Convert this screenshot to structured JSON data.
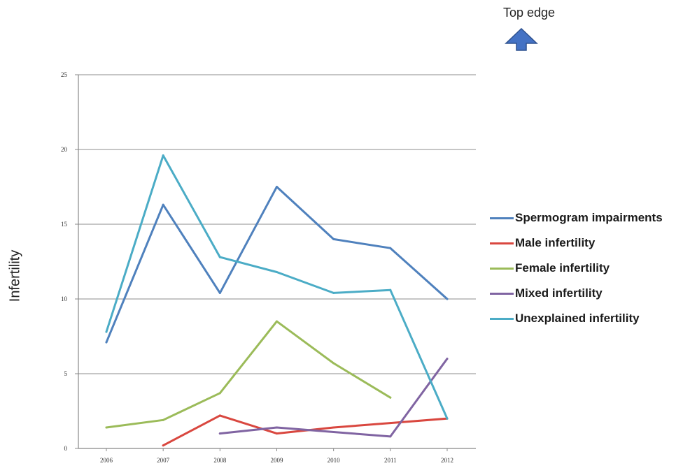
{
  "annotation": {
    "top_edge_label": "Top edge",
    "arrow_icon": "up-arrow-icon",
    "arrow_color": "#4472C4"
  },
  "chart_data": {
    "type": "line",
    "title": "",
    "xlabel": "",
    "ylabel": "Infertility",
    "categories": [
      "2006",
      "2007",
      "2008",
      "2009",
      "2010",
      "2011",
      "2012"
    ],
    "ylim": [
      0,
      25
    ],
    "yticks": [
      0,
      5,
      10,
      15,
      20,
      25
    ],
    "grid": true,
    "legend_position": "right",
    "series": [
      {
        "name": "Spermogram impairments",
        "color": "#4F81BD",
        "values": [
          7.1,
          16.3,
          10.4,
          17.5,
          14.0,
          13.4,
          10.0
        ]
      },
      {
        "name": "Male infertility",
        "color": "#D9473F",
        "values": [
          null,
          0.2,
          2.2,
          1.0,
          1.4,
          1.7,
          2.0
        ]
      },
      {
        "name": "Female infertility",
        "color": "#9BBB59",
        "values": [
          1.4,
          1.9,
          3.7,
          8.5,
          5.7,
          3.4,
          null
        ]
      },
      {
        "name": "Mixed infertility",
        "color": "#8064A2",
        "values": [
          null,
          null,
          1.0,
          1.4,
          1.1,
          0.8,
          6.0
        ]
      },
      {
        "name": "Unexplained infertility",
        "color": "#4BACC6",
        "values": [
          7.8,
          19.6,
          12.8,
          11.8,
          10.4,
          10.6,
          2.0
        ]
      }
    ]
  }
}
